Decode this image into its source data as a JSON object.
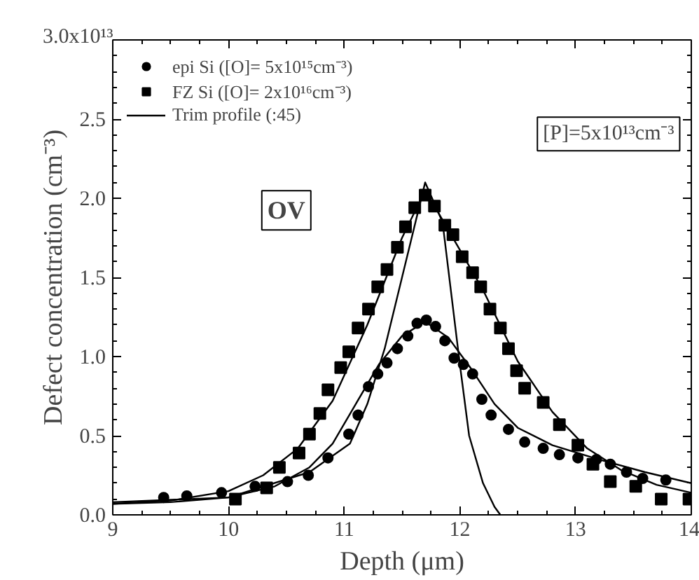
{
  "chart_data": {
    "type": "scatter",
    "xlabel": "Depth (μm)",
    "ylabel": "Defect concentration (cm⁻³)",
    "xlim": [
      9,
      14
    ],
    "ylim": [
      0,
      3.0
    ],
    "xticks": [
      9,
      10,
      11,
      12,
      13,
      14
    ],
    "yticks": [
      {
        "value": 0,
        "label": "0.0"
      },
      {
        "value": 0.5,
        "label": "0.5"
      },
      {
        "value": 1.0,
        "label": "1.0"
      },
      {
        "value": 1.5,
        "label": "1.5"
      },
      {
        "value": 2.0,
        "label": "2.0"
      },
      {
        "value": 2.5,
        "label": "2.5"
      },
      {
        "value": 3.0,
        "label": null
      }
    ],
    "grid": false,
    "legend": "top left",
    "annotations": [
      "[P]=5x10¹³cm⁻³",
      "OV",
      "3.0x10¹³"
    ],
    "series": [
      {
        "name": "epi Si ([O]= 5x10¹⁵cm⁻³)",
        "marker": "circle",
        "color": "#000000",
        "x": [
          9.44,
          9.64,
          9.94,
          10.23,
          10.51,
          10.69,
          10.86,
          11.04,
          11.12,
          11.21,
          11.29,
          11.37,
          11.46,
          11.55,
          11.63,
          11.71,
          11.79,
          11.87,
          11.95,
          12.03,
          12.11,
          12.19,
          12.27,
          12.42,
          12.56,
          12.72,
          12.86,
          13.02,
          13.18,
          13.3,
          13.44,
          13.58,
          13.78
        ],
        "values": [
          0.11,
          0.12,
          0.14,
          0.18,
          0.21,
          0.25,
          0.36,
          0.51,
          0.63,
          0.81,
          0.89,
          0.96,
          1.05,
          1.13,
          1.21,
          1.23,
          1.19,
          1.1,
          0.99,
          0.95,
          0.89,
          0.73,
          0.63,
          0.54,
          0.46,
          0.42,
          0.38,
          0.36,
          0.35,
          0.32,
          0.27,
          0.23,
          0.22
        ]
      },
      {
        "name": "FZ Si ([O]= 2x10¹⁶cm⁻³)",
        "marker": "square",
        "color": "#000000",
        "x": [
          10.06,
          10.33,
          10.44,
          10.61,
          10.7,
          10.79,
          10.86,
          10.97,
          11.04,
          11.12,
          11.21,
          11.29,
          11.37,
          11.46,
          11.53,
          11.61,
          11.7,
          11.78,
          11.87,
          11.94,
          12.02,
          12.11,
          12.18,
          12.26,
          12.35,
          12.42,
          12.49,
          12.56,
          12.72,
          12.86,
          13.02,
          13.15,
          13.3,
          13.52,
          13.74,
          13.98
        ],
        "values": [
          0.1,
          0.17,
          0.3,
          0.39,
          0.51,
          0.64,
          0.79,
          0.93,
          1.03,
          1.18,
          1.3,
          1.44,
          1.55,
          1.69,
          1.82,
          1.94,
          2.02,
          1.95,
          1.83,
          1.77,
          1.63,
          1.53,
          1.44,
          1.3,
          1.18,
          1.05,
          0.91,
          0.8,
          0.71,
          0.57,
          0.44,
          0.32,
          0.21,
          0.18,
          0.1,
          0.1
        ]
      },
      {
        "name": "Trim profile (:45)",
        "type": "line",
        "color": "#000000",
        "x": [
          9.0,
          10.0,
          10.7,
          11.05,
          11.2,
          11.35,
          11.5,
          11.7,
          11.85,
          12.0,
          12.08,
          12.2,
          12.3,
          12.35
        ],
        "values": [
          0.08,
          0.11,
          0.27,
          0.45,
          0.7,
          1.05,
          1.5,
          2.1,
          1.85,
          0.95,
          0.5,
          0.2,
          0.05,
          0.0
        ]
      },
      {
        "type": "line",
        "color": "#000000",
        "x": [
          9.0,
          9.5,
          10.0,
          10.3,
          10.6,
          10.9,
          11.2,
          11.5,
          11.7,
          11.9,
          12.2,
          12.5,
          12.8,
          13.1,
          13.4,
          13.7,
          14.0
        ],
        "values": [
          0.07,
          0.09,
          0.15,
          0.25,
          0.42,
          0.72,
          1.2,
          1.75,
          2.05,
          1.8,
          1.42,
          0.97,
          0.65,
          0.42,
          0.28,
          0.19,
          0.14
        ]
      },
      {
        "type": "line",
        "color": "#000000",
        "x": [
          9.0,
          9.5,
          10.0,
          10.4,
          10.7,
          10.9,
          11.1,
          11.3,
          11.5,
          11.7,
          11.9,
          12.1,
          12.3,
          12.5,
          12.8,
          13.2,
          13.6,
          14.0
        ],
        "values": [
          0.07,
          0.08,
          0.11,
          0.18,
          0.3,
          0.45,
          0.7,
          0.95,
          1.13,
          1.22,
          1.12,
          0.92,
          0.7,
          0.55,
          0.44,
          0.35,
          0.27,
          0.2
        ]
      }
    ]
  }
}
